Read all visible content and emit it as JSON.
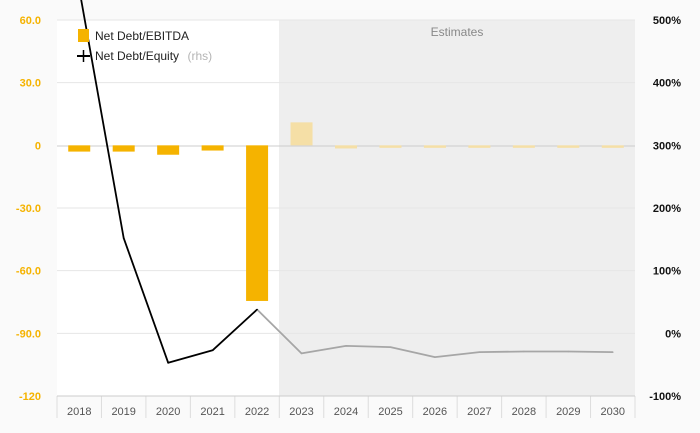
{
  "chart_data": {
    "type": "bar+line",
    "estimates_label": "Estimates",
    "estimates_from": "2023",
    "categories": [
      "2018",
      "2019",
      "2020",
      "2021",
      "2022",
      "2023",
      "2024",
      "2025",
      "2026",
      "2027",
      "2028",
      "2029",
      "2030"
    ],
    "series": [
      {
        "name": "Net Debt/EBITDA",
        "type": "bar",
        "axis": "left",
        "color": "#f5b300",
        "estimate_color": "#f5dfa6",
        "values": [
          -3.0,
          -3.0,
          -4.5,
          -2.5,
          -74.5,
          11.0,
          -1.5,
          -1.2,
          -1.2,
          -1.2,
          -1.2,
          -1.2,
          -1.2
        ]
      },
      {
        "name": "Net Debt/Equity",
        "name_note": "(rhs)",
        "type": "line",
        "axis": "right",
        "color": "#000000",
        "estimate_color": "#a6a6a6",
        "values": [
          550,
          152,
          -47,
          -27,
          38,
          -32,
          -20,
          -22,
          -38,
          -30,
          -29,
          -29,
          -30
        ]
      }
    ],
    "y_left": {
      "ticks": [
        "60.0",
        "30.0",
        "0",
        "-30.0",
        "-60.0",
        "-90.0",
        "-120"
      ],
      "tick_values": [
        60,
        30,
        0,
        -30,
        -60,
        -90,
        -120
      ],
      "range": [
        -120,
        60
      ],
      "color": "#f5b300"
    },
    "y_right": {
      "ticks": [
        "500%",
        "400%",
        "300%",
        "200%",
        "100%",
        "0%",
        "-100%"
      ],
      "tick_values": [
        500,
        400,
        300,
        200,
        100,
        0,
        -100
      ],
      "range": [
        -100,
        500
      ]
    },
    "legend_position": "top-left",
    "grid": true
  }
}
